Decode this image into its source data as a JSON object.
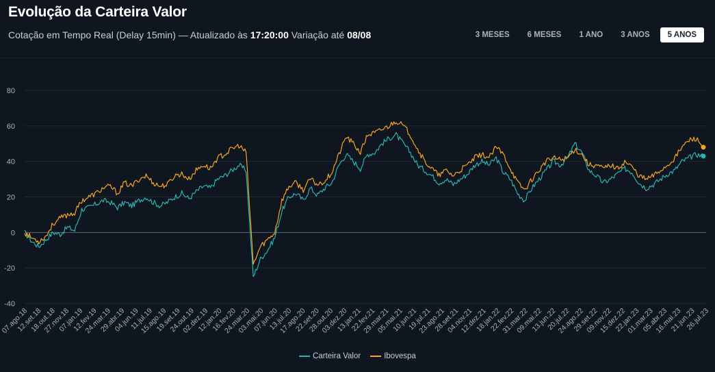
{
  "header": {
    "title": "Evolução da Carteira Valor",
    "subtitle_prefix": "Cotação em Tempo Real (Delay 15min)  —  Atualizado às ",
    "updated_time": "17:20:00",
    "subtitle_mid": " Variação até ",
    "variation_date": "08/08"
  },
  "range_buttons": [
    {
      "label": "3 MESES",
      "active": false
    },
    {
      "label": "6 MESES",
      "active": false
    },
    {
      "label": "1 ANO",
      "active": false
    },
    {
      "label": "3 ANOS",
      "active": false
    },
    {
      "label": "5 ANOS",
      "active": true
    }
  ],
  "colors": {
    "carteira": "#2bb3b1",
    "ibovespa": "#f5a623",
    "grid": "#1f2833",
    "zero_line": "#5b6470",
    "tick_text": "#a7afba"
  },
  "chart_data": {
    "type": "line",
    "ylim": [
      -40,
      80
    ],
    "yticks": [
      -40,
      -20,
      0,
      20,
      40,
      60,
      80
    ],
    "grid": true,
    "legend_position": "bottom-center",
    "x_tick_labels": [
      "07.ago.18",
      "12.set.18",
      "18.out.18",
      "27.nov.18",
      "07.jan.19",
      "12.fev.19",
      "24.mar.19",
      "29.abr.19",
      "04.jun.19",
      "11.jul.19",
      "15.ago.19",
      "19.set.19",
      "24.out.19",
      "02.dez.19",
      "12.jan.20",
      "16.fev.20",
      "24.mar.20",
      "03.mai.20",
      "07.jun.20",
      "13.jul.20",
      "17.ago.20",
      "22.set.20",
      "28.out.20",
      "03.dez.20",
      "13.jan.21",
      "22.fev.21",
      "29.mar.21",
      "05.mai.21",
      "10.jun.21",
      "19.jul.21",
      "23.ago.21",
      "28.set.21",
      "04.nov.21",
      "12.dez.21",
      "18.jan.22",
      "22.fev.22",
      "31.mar.22",
      "09.mai.22",
      "13.jun.22",
      "20.jul.22",
      "24.ago.22",
      "29.set.22",
      "09.nov.22",
      "15.dez.22",
      "22.jan.23",
      "01.mar.23",
      "05.abr.23",
      "16.mai.23",
      "21.jun.23",
      "26.jul.23"
    ],
    "series": [
      {
        "name": "Carteira Valor",
        "values": [
          0,
          -5,
          -8,
          -4,
          0,
          -1,
          3,
          1,
          13,
          14,
          16,
          18,
          17,
          14,
          17,
          15,
          18,
          20,
          17,
          15,
          17,
          20,
          22,
          19,
          23,
          26,
          25,
          30,
          32,
          35,
          38,
          35,
          -25,
          -15,
          -10,
          -3,
          12,
          20,
          22,
          18,
          25,
          21,
          25,
          28,
          38,
          44,
          40,
          36,
          44,
          45,
          50,
          53,
          55,
          50,
          45,
          38,
          35,
          32,
          28,
          30,
          27,
          30,
          33,
          38,
          40,
          38,
          42,
          34,
          30,
          22,
          18,
          25,
          30,
          35,
          40,
          38,
          42,
          50,
          45,
          35,
          32,
          28,
          30,
          33,
          36,
          34,
          28,
          25,
          27,
          30,
          33,
          35,
          40,
          42,
          44,
          43
        ]
      },
      {
        "name": "Ibovespa",
        "values": [
          0,
          -3,
          -5,
          -2,
          5,
          8,
          10,
          11,
          18,
          20,
          22,
          25,
          26,
          22,
          28,
          26,
          30,
          32,
          28,
          26,
          27,
          32,
          33,
          30,
          35,
          38,
          36,
          42,
          44,
          47,
          49,
          45,
          -18,
          -8,
          -4,
          0,
          18,
          26,
          28,
          24,
          30,
          27,
          29,
          34,
          44,
          54,
          50,
          45,
          55,
          56,
          58,
          60,
          63,
          60,
          55,
          47,
          40,
          36,
          32,
          35,
          32,
          35,
          38,
          42,
          44,
          42,
          48,
          44,
          36,
          28,
          24,
          30,
          35,
          40,
          42,
          41,
          42,
          47,
          44,
          38,
          38,
          36,
          38,
          36,
          40,
          37,
          32,
          30,
          32,
          35,
          38,
          42,
          48,
          52,
          53,
          48
        ]
      }
    ]
  }
}
